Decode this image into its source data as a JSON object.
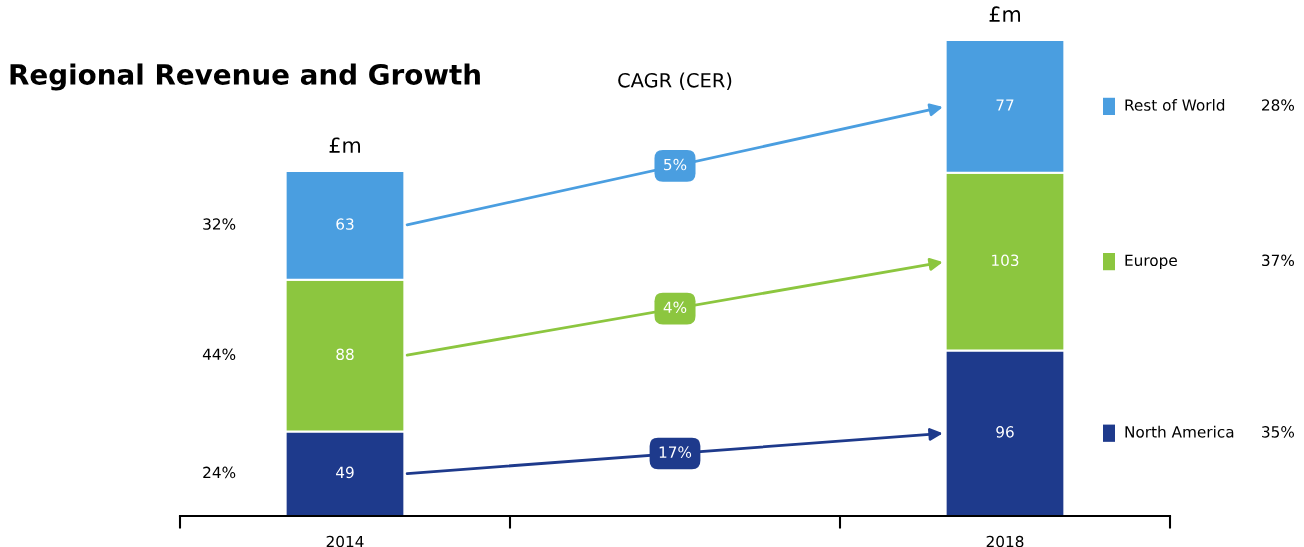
{
  "chart_data": {
    "type": "bar",
    "title": "Regional Revenue and Growth",
    "stacked": true,
    "data_labels": true,
    "legend": "right",
    "categories": [
      "2014",
      null,
      "2018"
    ],
    "series": [
      {
        "name": "North America",
        "color": "#1e3a8c",
        "values": [
          49,
          null,
          96
        ]
      },
      {
        "name": "Europe",
        "color": "#8cc63f",
        "values": [
          88,
          null,
          103
        ]
      },
      {
        "name": "Rest of World",
        "color": "#4a9ee0",
        "values": [
          63,
          null,
          77
        ]
      }
    ],
    "annotations": [
      "CAGR (CER)",
      {
        "text": "£m",
        "x": "2014",
        "y": 200
      },
      {
        "text": "£m",
        "x": "2018",
        "y": 276
      },
      "17%",
      "4%",
      "5%",
      "24%",
      "44%",
      "32%",
      "35%",
      "37%",
      "28%"
    ]
  }
}
